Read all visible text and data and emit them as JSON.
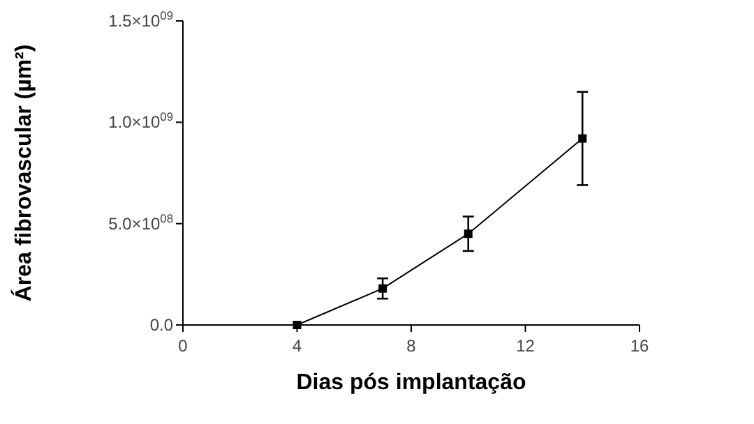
{
  "chart_data": {
    "type": "line",
    "xlabel": "Dias pós implantação",
    "ylabel": "Área fibrovascular (µm²)",
    "x": [
      4,
      7,
      10,
      14
    ],
    "series": [
      {
        "color": "#000000",
        "values": [
          0,
          180000000,
          450000000,
          920000000
        ],
        "errors": [
          null,
          50000000,
          85000000,
          230000000
        ]
      }
    ],
    "xlim": [
      0,
      16
    ],
    "xticks": [
      0,
      4,
      8,
      12,
      16
    ],
    "ylim": [
      0,
      1500000000
    ],
    "yticks": [
      {
        "value": 0,
        "label": "0.0"
      },
      {
        "value": 500000000,
        "label": "5.0×10$^{08}$"
      },
      {
        "value": 1000000000,
        "label": "1.0×10$^{09}$"
      },
      {
        "value": 1500000000,
        "label": "1.5×10$^{09}$"
      }
    ],
    "marker": "square",
    "grid": false
  }
}
